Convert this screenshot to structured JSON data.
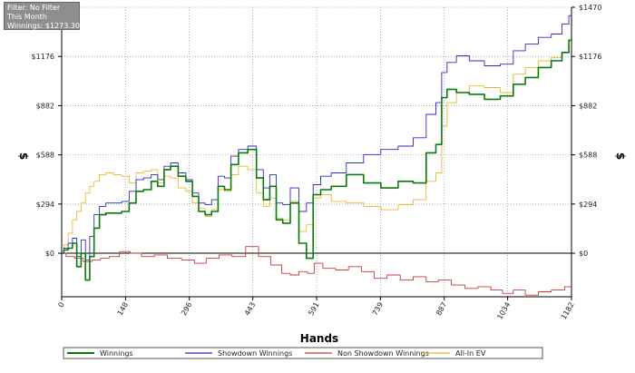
{
  "filter_box": {
    "line1": "Filter: No Filter",
    "line2": "This Month",
    "line3": "Winnings: $1273.30"
  },
  "chart_data": {
    "type": "line",
    "xlabel": "Hands",
    "ylabel": "$",
    "ylabel_right": "$",
    "xlim": [
      0,
      1182
    ],
    "ylim": [
      -260,
      1470
    ],
    "x_ticks": [
      0,
      148,
      296,
      443,
      591,
      739,
      887,
      1034,
      1182
    ],
    "x_tick_labels": [
      "0",
      "148",
      "296",
      "443",
      "591",
      "739",
      "887",
      "1034",
      "1182"
    ],
    "y_ticks": [
      0,
      294,
      588,
      882,
      1176,
      1470
    ],
    "y_tick_labels_left": [
      "$0",
      "$294",
      "$588",
      "$882",
      "$1176",
      ""
    ],
    "y_tick_labels_right": [
      "$0",
      "$294",
      "$588",
      "$882",
      "$1176",
      "$1470"
    ],
    "grid": true,
    "legend_position": "bottom",
    "colors": {
      "winnings": "#0a7a0a",
      "showdown": "#2b2bc8",
      "non_showdown": "#cc3a3a",
      "allin_ev": "#e8b830"
    },
    "series": [
      {
        "name": "Winnings",
        "key": "winnings",
        "x": [
          0,
          10,
          20,
          30,
          40,
          50,
          60,
          70,
          80,
          95,
          110,
          130,
          148,
          165,
          180,
          200,
          215,
          230,
          245,
          260,
          280,
          296,
          310,
          325,
          340,
          355,
          370,
          385,
          400,
          420,
          443,
          460,
          475,
          490,
          505,
          520,
          540,
          560,
          575,
          591,
          610,
          640,
          680,
          720,
          760,
          800,
          830,
          860,
          875,
          887,
          900,
          930,
          960,
          1000,
          1034,
          1060,
          1090,
          1120,
          1150,
          1170,
          1182
        ],
        "values": [
          0,
          20,
          30,
          60,
          -80,
          0,
          -160,
          -20,
          150,
          230,
          240,
          240,
          250,
          300,
          370,
          380,
          430,
          400,
          500,
          520,
          460,
          430,
          340,
          250,
          230,
          250,
          400,
          380,
          530,
          600,
          620,
          450,
          320,
          400,
          200,
          180,
          300,
          60,
          -30,
          350,
          380,
          400,
          470,
          420,
          390,
          430,
          420,
          600,
          650,
          930,
          980,
          960,
          950,
          920,
          940,
          1010,
          1050,
          1110,
          1150,
          1200,
          1273
        ]
      },
      {
        "name": "Showdown Winnings",
        "key": "showdown",
        "x": [
          0,
          10,
          20,
          30,
          40,
          50,
          60,
          70,
          80,
          95,
          110,
          130,
          148,
          165,
          180,
          200,
          215,
          230,
          245,
          260,
          280,
          296,
          310,
          325,
          340,
          355,
          370,
          385,
          400,
          420,
          443,
          460,
          475,
          490,
          505,
          520,
          540,
          560,
          575,
          591,
          610,
          640,
          680,
          720,
          760,
          800,
          830,
          860,
          875,
          887,
          900,
          930,
          960,
          1000,
          1034,
          1060,
          1090,
          1120,
          1150,
          1170,
          1182
        ],
        "values": [
          0,
          30,
          60,
          90,
          -20,
          80,
          -40,
          100,
          230,
          280,
          300,
          300,
          310,
          370,
          440,
          450,
          470,
          440,
          520,
          540,
          480,
          440,
          360,
          300,
          290,
          320,
          460,
          450,
          580,
          620,
          640,
          500,
          390,
          470,
          300,
          290,
          390,
          250,
          300,
          410,
          460,
          480,
          540,
          590,
          620,
          640,
          690,
          830,
          900,
          1080,
          1140,
          1180,
          1150,
          1120,
          1130,
          1210,
          1250,
          1290,
          1310,
          1370,
          1420
        ]
      },
      {
        "name": "Non Showdown Winnings",
        "key": "non_showdown",
        "x": [
          0,
          20,
          40,
          60,
          80,
          100,
          120,
          148,
          170,
          200,
          230,
          260,
          296,
          320,
          350,
          380,
          410,
          443,
          470,
          500,
          520,
          540,
          560,
          580,
          591,
          620,
          650,
          680,
          710,
          739,
          770,
          800,
          830,
          860,
          887,
          920,
          950,
          980,
          1010,
          1034,
          1060,
          1090,
          1120,
          1150,
          1182
        ],
        "values": [
          0,
          -20,
          -30,
          -50,
          -40,
          -30,
          -20,
          10,
          0,
          -20,
          -10,
          -30,
          -40,
          -60,
          -30,
          -10,
          -20,
          40,
          -20,
          -70,
          -120,
          -130,
          -110,
          -120,
          -60,
          -90,
          -100,
          -80,
          -110,
          -150,
          -130,
          -160,
          -140,
          -170,
          -160,
          -190,
          -210,
          -200,
          -220,
          -240,
          -220,
          -250,
          -230,
          -220,
          -200
        ]
      },
      {
        "name": "All-In EV",
        "key": "allin_ev",
        "x": [
          0,
          10,
          20,
          30,
          40,
          50,
          60,
          70,
          80,
          95,
          110,
          130,
          148,
          165,
          180,
          200,
          215,
          230,
          245,
          260,
          280,
          296,
          310,
          325,
          340,
          355,
          370,
          385,
          400,
          420,
          443,
          460,
          475,
          490,
          505,
          520,
          540,
          560,
          575,
          591,
          610,
          640,
          680,
          720,
          760,
          800,
          830,
          860,
          875,
          887,
          900,
          930,
          960,
          1000,
          1034,
          1060,
          1090,
          1120,
          1150,
          1170,
          1182
        ],
        "values": [
          0,
          50,
          120,
          200,
          250,
          300,
          360,
          400,
          430,
          470,
          480,
          470,
          460,
          420,
          480,
          490,
          500,
          420,
          460,
          450,
          390,
          370,
          300,
          270,
          220,
          260,
          380,
          370,
          470,
          520,
          500,
          360,
          280,
          330,
          210,
          200,
          310,
          130,
          170,
          330,
          350,
          310,
          300,
          280,
          260,
          290,
          320,
          430,
          480,
          760,
          900,
          960,
          1000,
          990,
          960,
          1070,
          1110,
          1150,
          1170,
          1200,
          1230
        ]
      }
    ]
  }
}
